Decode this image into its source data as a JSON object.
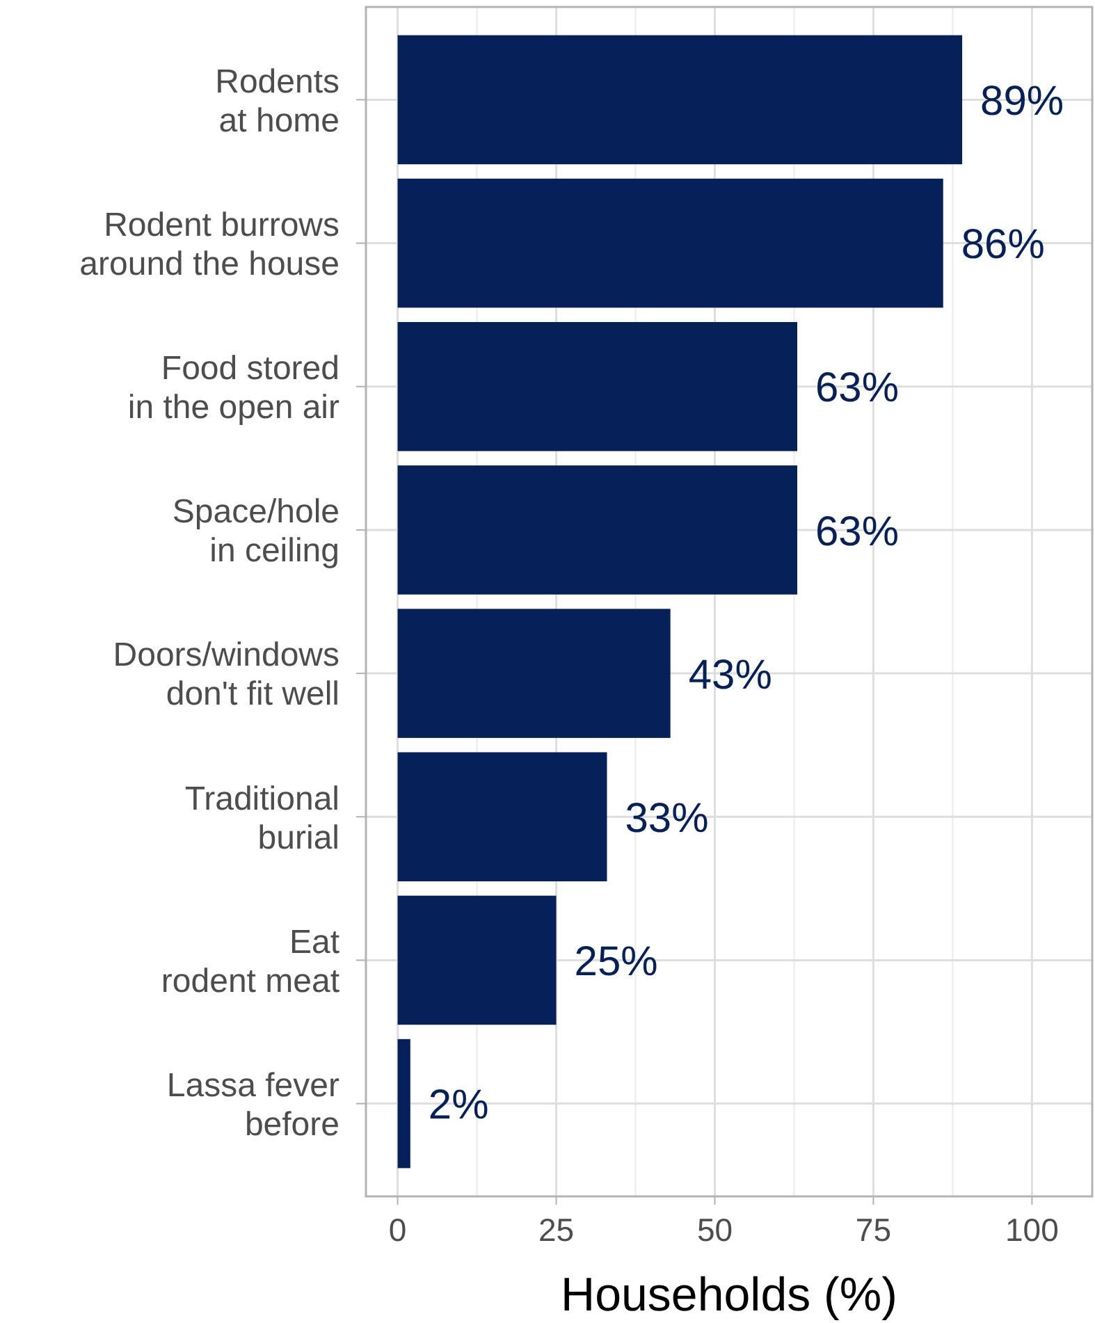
{
  "chart_data": {
    "type": "bar",
    "orientation": "horizontal",
    "xlabel": "Households (%)",
    "categories": [
      "Rodents\nat home",
      "Rodent burrows\naround the house",
      "Food stored\nin the open air",
      "Space/hole\nin ceiling",
      "Doors/windows\ndon't fit well",
      "Traditional\nburial",
      "Eat\nrodent meat",
      "Lassa fever\nbefore"
    ],
    "values": [
      89,
      86,
      63,
      63,
      43,
      33,
      25,
      2
    ],
    "value_labels": [
      "89%",
      "86%",
      "63%",
      "63%",
      "43%",
      "33%",
      "25%",
      "2%"
    ],
    "color": "#06215a",
    "xlim": [
      -5,
      109.5
    ],
    "xticks": [
      0,
      25,
      50,
      75,
      100
    ],
    "grid": true
  }
}
